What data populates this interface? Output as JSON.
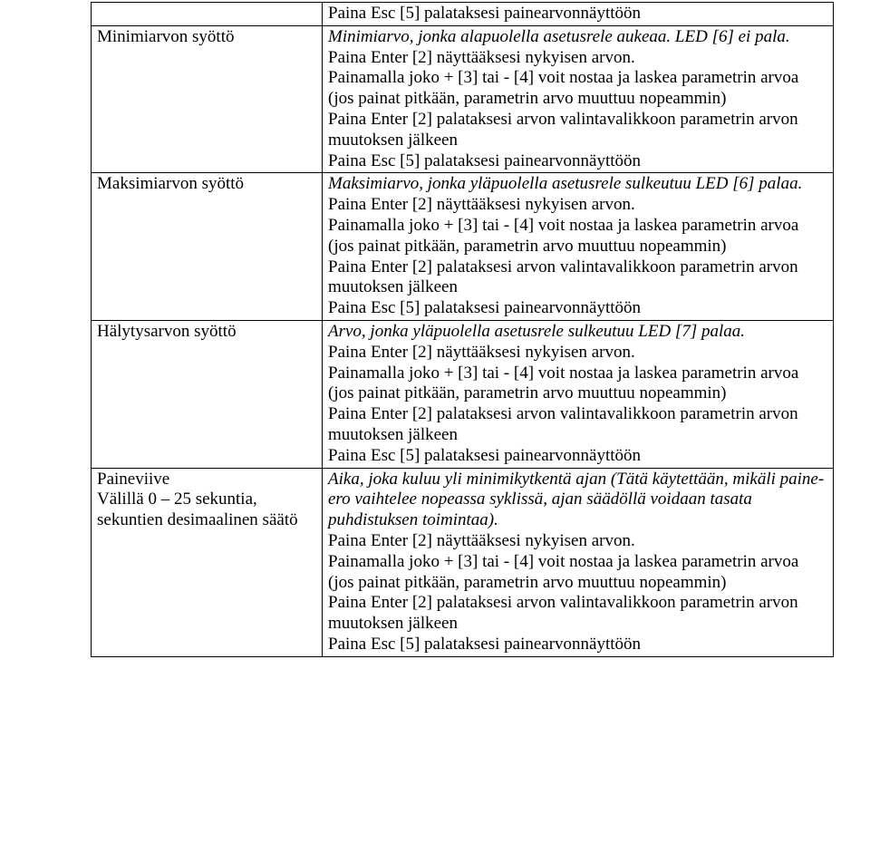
{
  "rows": [
    {
      "left": [],
      "right": [
        {
          "text": "Paina Esc [5] palataksesi painearvonnäyttöön",
          "italic": false
        }
      ]
    },
    {
      "left": [
        {
          "text": "Minimiarvon syöttö",
          "italic": false
        }
      ],
      "right": [
        {
          "text": "Minimiarvo, jonka alapuolella asetusrele aukeaa. LED [6] ei pala.",
          "italic": true
        },
        {
          "text": "Paina Enter [2] näyttääksesi nykyisen arvon.",
          "italic": false
        },
        {
          "text": "Painamalla joko + [3] tai - [4] voit nostaa ja laskea parametrin arvoa (jos painat pitkään, parametrin arvo muuttuu nopeammin)",
          "italic": false
        },
        {
          "text": "Paina Enter [2] palataksesi arvon valintavalikkoon parametrin arvon muutoksen jälkeen",
          "italic": false
        },
        {
          "text": "Paina Esc [5] palataksesi painearvonnäyttöön",
          "italic": false
        }
      ]
    },
    {
      "left": [
        {
          "text": "Maksimiarvon syöttö",
          "italic": false
        }
      ],
      "right": [
        {
          "text": "Maksimiarvo, jonka yläpuolella asetusrele sulkeutuu LED [6] palaa.",
          "italic": true
        },
        {
          "text": "Paina Enter [2] näyttääksesi nykyisen arvon.",
          "italic": false
        },
        {
          "text": "Painamalla joko + [3] tai - [4] voit nostaa ja laskea parametrin arvoa (jos painat pitkään, parametrin arvo muuttuu nopeammin)",
          "italic": false
        },
        {
          "text": "Paina Enter [2] palataksesi arvon valintavalikkoon parametrin arvon muutoksen jälkeen",
          "italic": false
        },
        {
          "text": "Paina Esc [5] palataksesi painearvonnäyttöön",
          "italic": false
        }
      ]
    },
    {
      "left": [
        {
          "text": "Hälytysarvon syöttö",
          "italic": false
        }
      ],
      "right": [
        {
          "text": "Arvo, jonka yläpuolella asetusrele sulkeutuu LED [7] palaa.",
          "italic": true
        },
        {
          "text": "Paina Enter [2] näyttääksesi nykyisen arvon.",
          "italic": false
        },
        {
          "text": "Painamalla joko + [3] tai - [4] voit nostaa ja laskea parametrin arvoa (jos painat pitkään, parametrin arvo muuttuu nopeammin)",
          "italic": false
        },
        {
          "text": "Paina Enter [2] palataksesi arvon valintavalikkoon parametrin arvon muutoksen jälkeen",
          "italic": false
        },
        {
          "text": "Paina Esc [5] palataksesi painearvonnäyttöön",
          "italic": false
        }
      ]
    },
    {
      "left": [
        {
          "text": "Paineviive",
          "italic": false
        },
        {
          "text": "Välillä 0 – 25 sekuntia, sekuntien desimaalinen säätö",
          "italic": false
        }
      ],
      "right": [
        {
          "text": "Aika, joka kuluu yli minimikytkentä ajan (Tätä käytettään, mikäli paine-ero vaihtelee nopeassa syklissä, ajan säädöllä voidaan tasata puhdistuksen toimintaa).",
          "italic": true
        },
        {
          "text": "Paina Enter [2] näyttääksesi nykyisen arvon.",
          "italic": false
        },
        {
          "text": "Painamalla joko + [3] tai - [4] voit nostaa ja laskea parametrin arvoa (jos painat pitkään, parametrin arvo muuttuu nopeammin)",
          "italic": false
        },
        {
          "text": "Paina Enter [2] palataksesi arvon valintavalikkoon parametrin arvon muutoksen jälkeen",
          "italic": false
        },
        {
          "text": "Paina Esc [5] palataksesi painearvonnäyttöön",
          "italic": false
        }
      ]
    }
  ]
}
